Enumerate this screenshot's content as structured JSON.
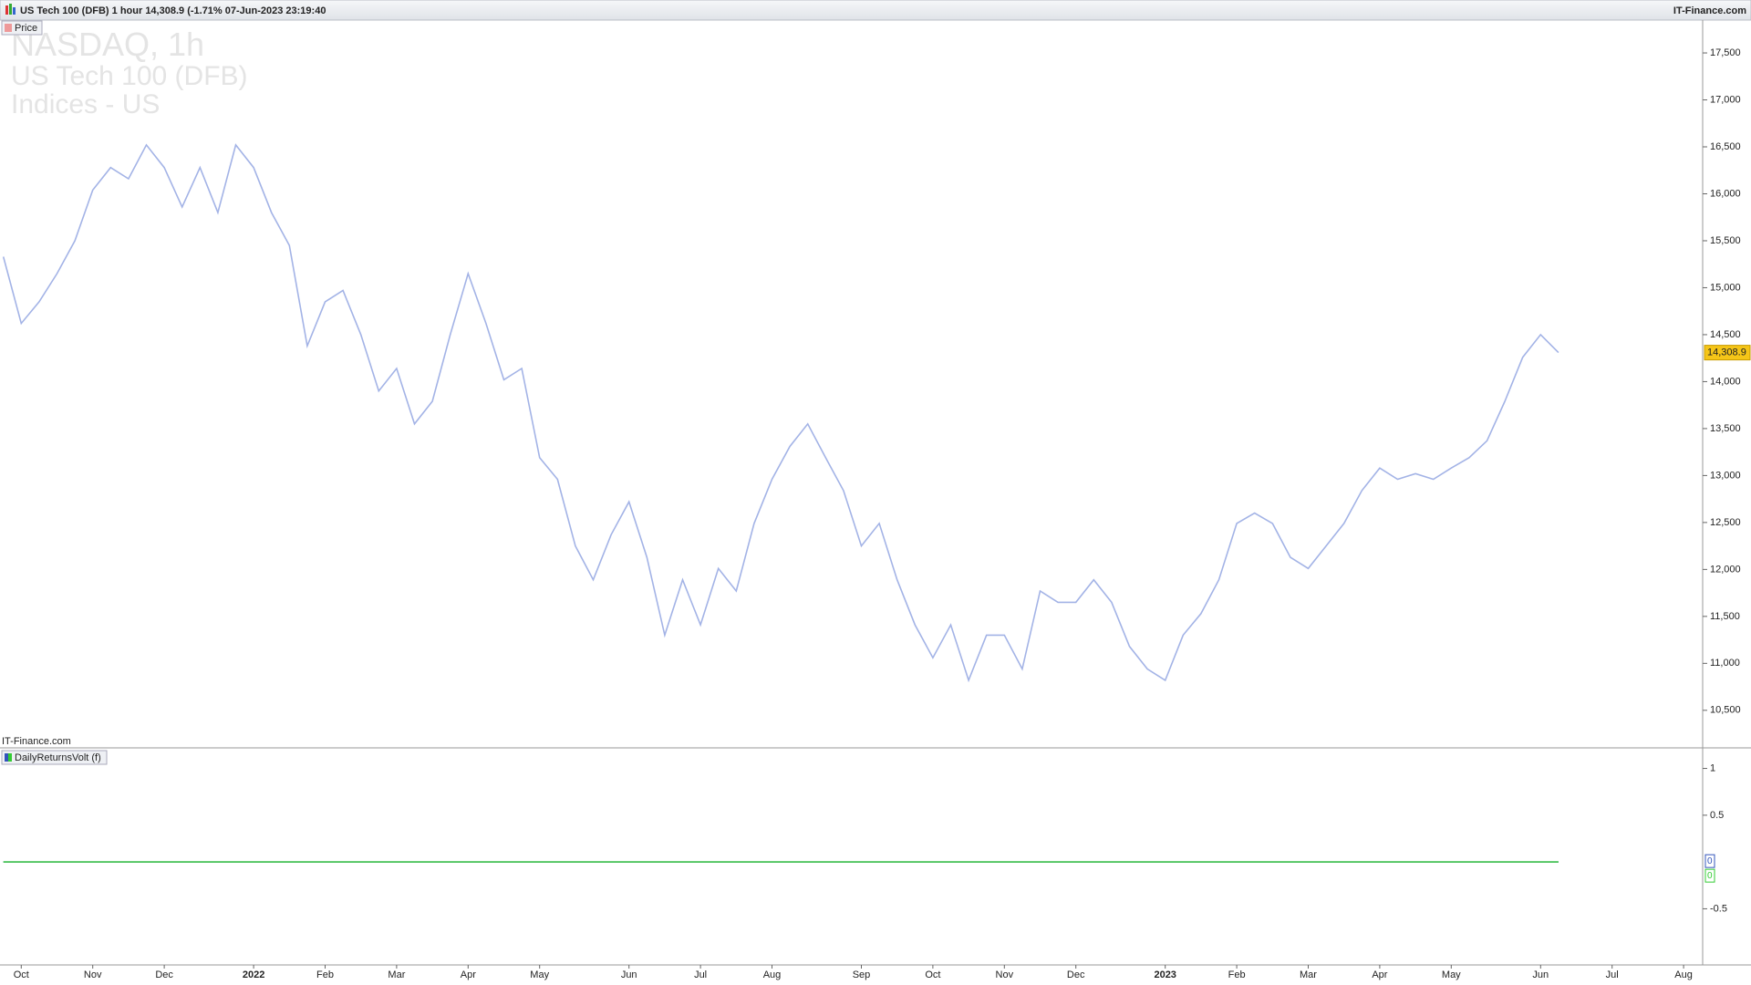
{
  "header": {
    "title": "US Tech 100 (DFB) 1 hour 14,308.9 (-1.71% 07-Jun-2023 23:19:40",
    "site": "IT-Finance.com"
  },
  "chart_data": [
    {
      "type": "line",
      "watermark": [
        "NASDAQ, 1h",
        "US Tech 100 (DFB)",
        "Indices - US"
      ],
      "source": "IT-Finance.com",
      "categories": [
        null,
        "Oct",
        null,
        null,
        null,
        "Nov",
        null,
        null,
        null,
        "Dec",
        null,
        null,
        null,
        null,
        "2022",
        null,
        null,
        null,
        "Feb",
        null,
        null,
        null,
        "Mar",
        null,
        null,
        null,
        "Apr",
        null,
        null,
        null,
        "May",
        null,
        null,
        null,
        null,
        "Jun",
        null,
        null,
        null,
        "Jul",
        null,
        null,
        null,
        "Aug",
        null,
        null,
        null,
        null,
        "Sep",
        null,
        null,
        null,
        "Oct",
        null,
        null,
        null,
        "Nov",
        null,
        null,
        null,
        "Dec",
        null,
        null,
        null,
        null,
        "2023",
        null,
        null,
        null,
        "Feb",
        null,
        null,
        null,
        "Mar",
        null,
        null,
        null,
        "Apr",
        null,
        null,
        null,
        "May",
        null,
        null,
        null,
        null,
        "Jun",
        null,
        null,
        null,
        "Jul",
        null,
        null,
        null,
        "Aug",
        null
      ],
      "series": [
        {
          "name": "Price",
          "color": "#a3b3e6",
          "values": [
            15330,
            14620,
            14850,
            15150,
            15500,
            16040,
            16280,
            16160,
            16520,
            16280,
            15860,
            16280,
            15800,
            16520,
            16280,
            15800,
            15450,
            14380,
            14850,
            14970,
            14500,
            13900,
            14140,
            13550,
            13790,
            14500,
            15150,
            14620,
            14020,
            14140,
            13190,
            12960,
            12250,
            11890,
            12370,
            12720,
            12130,
            11300,
            11890,
            11410,
            12010,
            11770,
            12490,
            12960,
            13310,
            13550,
            13190,
            12840,
            12250,
            12490,
            11890,
            11410,
            11060,
            11410,
            10820,
            11300,
            11300,
            10940,
            11770,
            11650,
            11650,
            11890,
            11650,
            11180,
            10940,
            10820,
            11300,
            11530,
            11890,
            12490,
            12600,
            12490,
            12130,
            12010,
            12250,
            12490,
            12840,
            13080,
            12960,
            13020,
            12960,
            13080,
            13190,
            13370,
            13790,
            14260,
            14500,
            14308.9,
            null,
            null,
            null,
            null,
            null,
            null,
            null,
            null
          ]
        }
      ],
      "current": {
        "value": 14308.9,
        "label": "14,308.9"
      },
      "ylim": [
        10100,
        17850
      ],
      "yticks": [
        {
          "value": 10500,
          "label": "10,500"
        },
        {
          "value": 11000,
          "label": "11,000"
        },
        {
          "value": 11500,
          "label": "11,500"
        },
        {
          "value": 12000,
          "label": "12,000"
        },
        {
          "value": 12500,
          "label": "12,500"
        },
        {
          "value": 13000,
          "label": "13,000"
        },
        {
          "value": 13500,
          "label": "13,500"
        },
        {
          "value": 14000,
          "label": "14,000"
        },
        {
          "value": 14500,
          "label": "14,500"
        },
        {
          "value": 15000,
          "label": "15,000"
        },
        {
          "value": 15500,
          "label": "15,500"
        },
        {
          "value": 16000,
          "label": "16,000"
        },
        {
          "value": 16500,
          "label": "16,500"
        },
        {
          "value": 17000,
          "label": "17,000"
        },
        {
          "value": 17500,
          "label": "17,500"
        }
      ],
      "grid": false
    },
    {
      "type": "line",
      "legend": "DailyReturnsVolt (f)",
      "series": [
        {
          "color": "#3355bb",
          "values": [
            0,
            0,
            0,
            0,
            0,
            0,
            0,
            0,
            0,
            0,
            0,
            0,
            0,
            0,
            0,
            0,
            0,
            0,
            0,
            0,
            0,
            0,
            0,
            0,
            0,
            0,
            0,
            0,
            0,
            0,
            0,
            0,
            0,
            0,
            0,
            0,
            0,
            0,
            0,
            0,
            0,
            0,
            0,
            0,
            0,
            0,
            0,
            0,
            0,
            0,
            0,
            0,
            0,
            0,
            0,
            0,
            0,
            0,
            0,
            0,
            0,
            0,
            0,
            0,
            0,
            0,
            0,
            0,
            0,
            0,
            0,
            0,
            0,
            0,
            0,
            0,
            0,
            0,
            0,
            0,
            0,
            0,
            0,
            0,
            0,
            0,
            0,
            0,
            null,
            null,
            null,
            null,
            null,
            null,
            null,
            null
          ]
        },
        {
          "color": "#33cc33",
          "values": [
            0,
            0,
            0,
            0,
            0,
            0,
            0,
            0,
            0,
            0,
            0,
            0,
            0,
            0,
            0,
            0,
            0,
            0,
            0,
            0,
            0,
            0,
            0,
            0,
            0,
            0,
            0,
            0,
            0,
            0,
            0,
            0,
            0,
            0,
            0,
            0,
            0,
            0,
            0,
            0,
            0,
            0,
            0,
            0,
            0,
            0,
            0,
            0,
            0,
            0,
            0,
            0,
            0,
            0,
            0,
            0,
            0,
            0,
            0,
            0,
            0,
            0,
            0,
            0,
            0,
            0,
            0,
            0,
            0,
            0,
            0,
            0,
            0,
            0,
            0,
            0,
            0,
            0,
            0,
            0,
            0,
            0,
            0,
            0,
            0,
            0,
            0,
            0,
            null,
            null,
            null,
            null,
            null,
            null,
            null,
            null
          ]
        }
      ],
      "ylim": [
        -1.1,
        1.21
      ],
      "yticks": [
        1,
        0.5,
        -0.5
      ],
      "grid": false
    }
  ]
}
